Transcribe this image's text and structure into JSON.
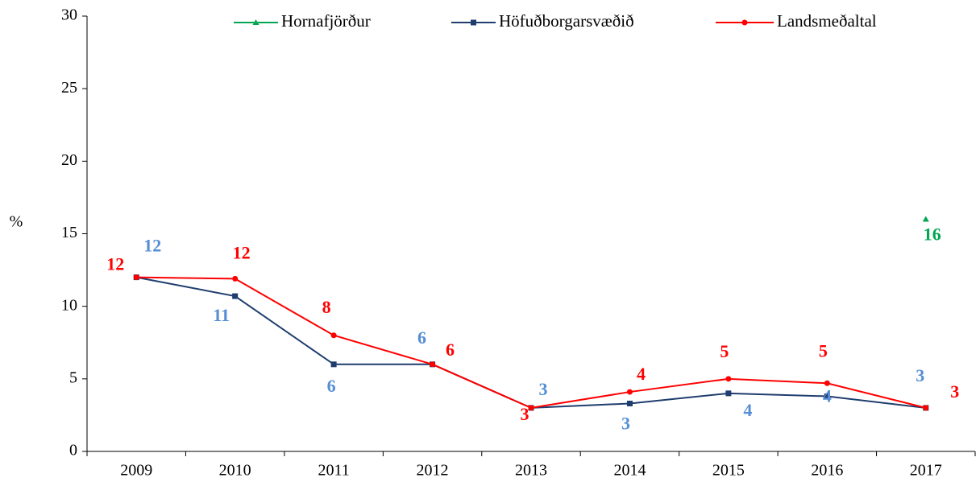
{
  "chart_data": {
    "type": "line",
    "categories": [
      "2009",
      "2010",
      "2011",
      "2012",
      "2013",
      "2014",
      "2015",
      "2016",
      "2017"
    ],
    "series": [
      {
        "name": "Hornafjörður",
        "color": "#00a651",
        "label_color": "#00a651",
        "marker": "triangle",
        "values": [
          null,
          null,
          null,
          null,
          null,
          null,
          null,
          null,
          16
        ]
      },
      {
        "name": "Höfuðborgarsvæðið",
        "color": "#1f3d6e",
        "label_color": "#558ed5",
        "marker": "square",
        "values": [
          12,
          10.7,
          6,
          6,
          3,
          3.3,
          4,
          3.8,
          3
        ],
        "value_labels": [
          "12",
          "11",
          "6",
          "6",
          "3",
          "3",
          "4",
          "4",
          "3"
        ]
      },
      {
        "name": "Landsmeðaltal",
        "color": "#ff0000",
        "label_color": "#ff0000",
        "marker": "circle",
        "values": [
          12,
          11.9,
          8,
          6,
          3,
          4.1,
          5,
          4.7,
          3
        ],
        "value_labels": [
          "12",
          "12",
          "8",
          "6",
          "3",
          "4",
          "5",
          "5",
          "3"
        ]
      }
    ],
    "ylabel": "%",
    "ylim": [
      0,
      30
    ],
    "yticks": [
      0,
      5,
      10,
      15,
      20,
      25,
      30
    ],
    "grid": false,
    "legend": "top"
  }
}
